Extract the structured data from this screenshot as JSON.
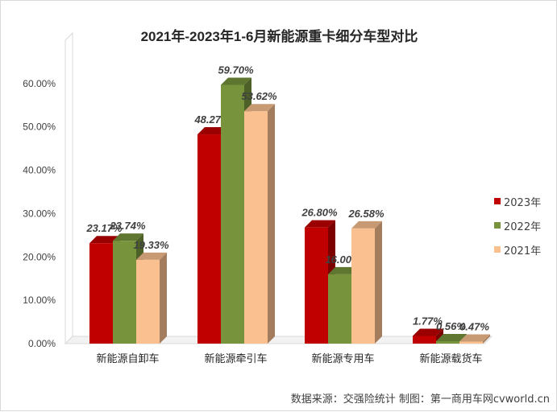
{
  "chart_data": {
    "type": "bar",
    "title": "2021年-2023年1-6月新能源重卡细分车型对比",
    "categories": [
      "新能源自卸车",
      "新能源牵引车",
      "新能源专用车",
      "新能源载货车"
    ],
    "series": [
      {
        "name": "2023年",
        "color": "#c00000",
        "values": [
          23.17,
          48.27,
          26.8,
          1.77
        ],
        "labels": [
          "23.17%",
          "48.27%",
          "26.80%",
          "1.77%"
        ]
      },
      {
        "name": "2022年",
        "color": "#77933c",
        "values": [
          23.74,
          59.7,
          16.0,
          0.56
        ],
        "labels": [
          "23.74%",
          "59.70%",
          "16.00%",
          "0.56%"
        ]
      },
      {
        "name": "2021年",
        "color": "#fac090",
        "values": [
          19.33,
          53.62,
          26.58,
          0.47
        ],
        "labels": [
          "19.33%",
          "53.62%",
          "26.58%",
          "0.47%"
        ]
      }
    ],
    "ylim": [
      0,
      70
    ],
    "yticks": [
      "0.00%",
      "10.00%",
      "20.00%",
      "30.00%",
      "40.00%",
      "50.00%",
      "60.00%"
    ],
    "grid": false,
    "style": "3d-bar",
    "legend": "right"
  },
  "source_note": "数据来源：交强险统计  制图：第一商用车网cvworld.cn"
}
